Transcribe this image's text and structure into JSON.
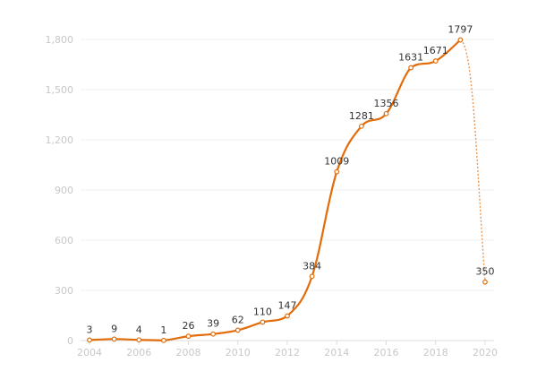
{
  "chart_data": {
    "type": "line",
    "x": [
      2004,
      2005,
      2006,
      2007,
      2008,
      2009,
      2010,
      2011,
      2012,
      2013,
      2014,
      2015,
      2016,
      2017,
      2018,
      2019,
      2020
    ],
    "x_tick_labels": [
      "2004",
      "2006",
      "2008",
      "2010",
      "2012",
      "2014",
      "2016",
      "2018",
      "2020"
    ],
    "y_tick_labels": [
      "0",
      "300",
      "600",
      "900",
      "1,200",
      "1,500",
      "1,800"
    ],
    "series": [
      {
        "values": [
          3,
          9,
          4,
          1,
          26,
          39,
          62,
          110,
          147,
          384,
          1009,
          1281,
          1356,
          1631,
          1671,
          1797,
          350
        ],
        "labels": [
          "3",
          "9",
          "4",
          "1",
          "26",
          "39",
          "62",
          "110",
          "147",
          "384",
          "1009",
          "1281",
          "1356",
          "1631",
          "1671",
          "1797",
          "350"
        ],
        "dashed_last_segment": true
      }
    ],
    "title": "",
    "xlabel": "",
    "ylabel": "",
    "xlim": [
      2004,
      2020
    ],
    "ylim": [
      0,
      1800
    ],
    "grid": true,
    "colors": {
      "line": "#e36c0a",
      "grid": "#efefef",
      "tick_text": "#c8c8c8",
      "label_text": "#333333"
    }
  }
}
